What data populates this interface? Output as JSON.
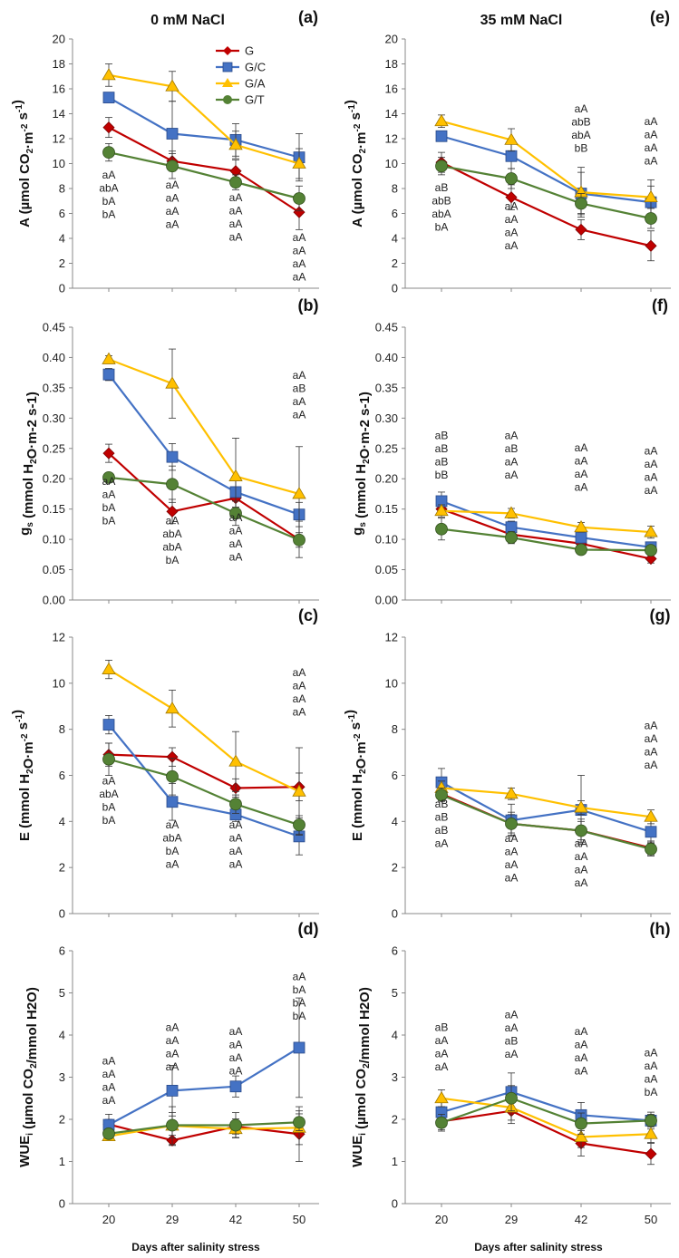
{
  "columns": [
    "0 mM NaCl",
    "35 mM NaCl"
  ],
  "x_label": "Days after salinity stress",
  "colors": {
    "G": "#c00000",
    "G/C": "#4472c4",
    "G/A": "#ffc000",
    "G/T": "#548235"
  },
  "legend": [
    "G",
    "G/C",
    "G/A",
    "G/T"
  ],
  "chart_data": [
    {
      "type": "line",
      "panel": "(a)",
      "column": 0,
      "row": 0,
      "ylabel_main": "A (µmol CO",
      "ylabel_sub1": "2",
      "ylabel_mid": "·m",
      "ylabel_sup1": "-2",
      "ylabel_mid2": " s",
      "ylabel_sup2": "-1",
      "ylabel_end": ")",
      "ylim": [
        0,
        20
      ],
      "yticks": [
        "0",
        "2",
        "4",
        "6",
        "8",
        "10",
        "12",
        "14",
        "16",
        "18",
        "20"
      ],
      "categories": [
        "20",
        "29",
        "42",
        "50"
      ],
      "series": [
        {
          "name": "G",
          "values": [
            12.9,
            10.2,
            9.4,
            6.1
          ],
          "err": [
            0.8,
            0.8,
            0.9,
            1.4
          ]
        },
        {
          "name": "G/C",
          "values": [
            15.3,
            12.4,
            11.9,
            10.5
          ],
          "err": [
            0.3,
            2.6,
            1.3,
            1.9
          ]
        },
        {
          "name": "G/A",
          "values": [
            17.1,
            16.2,
            11.5,
            10.0
          ],
          "err": [
            0.9,
            1.2,
            1.1,
            1.2
          ]
        },
        {
          "name": "G/T",
          "values": [
            10.9,
            9.8,
            8.5,
            7.2
          ],
          "err": [
            0.7,
            1.0,
            0.6,
            1.0
          ]
        }
      ],
      "annotations": [
        {
          "x": "20",
          "y_top": 8.8,
          "lines": [
            "aA",
            "abA",
            "bA",
            "bA"
          ]
        },
        {
          "x": "29",
          "y_top": 8.0,
          "lines": [
            "aA",
            "aA",
            "aA",
            "aA"
          ]
        },
        {
          "x": "42",
          "y_top": 7.0,
          "lines": [
            "aA",
            "aA",
            "aA",
            "aA"
          ]
        },
        {
          "x": "50",
          "y_top": 3.8,
          "lines": [
            "aA",
            "aA",
            "aA",
            "aA"
          ]
        }
      ]
    },
    {
      "type": "line",
      "panel": "(b)",
      "column": 0,
      "row": 1,
      "ylabel_main": "g",
      "ylabel_sub1": "s",
      "ylabel_mid": " (mmol H",
      "ylabel_sup1": "",
      "ylabel_mid2": "2",
      "ylabel_sup2": "",
      "ylabel_end": "O·m-2 s-1)",
      "ylim": [
        0,
        0.45
      ],
      "yticks": [
        "0.00",
        "0.05",
        "0.10",
        "0.15",
        "0.20",
        "0.25",
        "0.30",
        "0.35",
        "0.40",
        "0.45"
      ],
      "categories": [
        "20",
        "29",
        "42",
        "50"
      ],
      "series": [
        {
          "name": "G",
          "values": [
            0.242,
            0.146,
            0.168,
            0.1
          ],
          "err": [
            0.015,
            0.02,
            0.015,
            0.03
          ]
        },
        {
          "name": "G/C",
          "values": [
            0.372,
            0.236,
            0.178,
            0.141
          ],
          "err": [
            0.01,
            0.022,
            0.025,
            0.02
          ]
        },
        {
          "name": "G/A",
          "values": [
            0.397,
            0.357,
            0.204,
            0.175
          ],
          "err": [
            0.006,
            0.057,
            0.063,
            0.078
          ]
        },
        {
          "name": "G/T",
          "values": [
            0.202,
            0.191,
            0.143,
            0.099
          ],
          "err": [
            0.006,
            0.03,
            0.02,
            0.012
          ]
        }
      ],
      "annotations": [
        {
          "x": "20",
          "y_top": 0.19,
          "lines": [
            "aA",
            "aA",
            "bA",
            "bA"
          ]
        },
        {
          "x": "29",
          "y_top": 0.125,
          "lines": [
            "aA",
            "abA",
            "abA",
            "bA"
          ]
        },
        {
          "x": "42",
          "y_top": 0.13,
          "lines": [
            "aA",
            "aA",
            "aA",
            "aA"
          ]
        },
        {
          "x": "50",
          "y_top": 0.365,
          "lines": [
            "aA",
            "aB",
            "aA",
            "aA"
          ]
        }
      ]
    },
    {
      "type": "line",
      "panel": "(c)",
      "column": 0,
      "row": 2,
      "ylabel_main": "E (mmol H",
      "ylabel_sub1": "2",
      "ylabel_mid": "O·m",
      "ylabel_sup1": "-2",
      "ylabel_mid2": " s",
      "ylabel_sup2": "-1",
      "ylabel_end": ")",
      "ylim": [
        0,
        12
      ],
      "yticks": [
        "0",
        "2",
        "4",
        "6",
        "8",
        "10",
        "12"
      ],
      "categories": [
        "20",
        "29",
        "42",
        "50"
      ],
      "series": [
        {
          "name": "G",
          "values": [
            6.9,
            6.8,
            5.45,
            5.5
          ],
          "err": [
            0.5,
            0.4,
            0.4,
            0.6
          ]
        },
        {
          "name": "G/C",
          "values": [
            8.2,
            4.85,
            4.3,
            3.35
          ],
          "err": [
            0.4,
            0.8,
            0.3,
            0.8
          ]
        },
        {
          "name": "G/A",
          "values": [
            10.6,
            8.9,
            6.6,
            5.3
          ],
          "err": [
            0.4,
            0.8,
            1.3,
            1.9
          ]
        },
        {
          "name": "G/T",
          "values": [
            6.7,
            5.95,
            4.75,
            3.85
          ],
          "err": [
            0.7,
            0.8,
            0.4,
            0.4
          ]
        }
      ],
      "annotations": [
        {
          "x": "20",
          "y_top": 5.6,
          "lines": [
            "aA",
            "abA",
            "bA",
            "bA"
          ]
        },
        {
          "x": "29",
          "y_top": 3.7,
          "lines": [
            "aA",
            "abA",
            "bA",
            "aA"
          ]
        },
        {
          "x": "42",
          "y_top": 3.7,
          "lines": [
            "aA",
            "aA",
            "aA",
            "aA"
          ]
        },
        {
          "x": "50",
          "y_top": 10.3,
          "lines": [
            "aA",
            "aA",
            "aA",
            "aA"
          ]
        }
      ]
    },
    {
      "type": "line",
      "panel": "(d)",
      "column": 0,
      "row": 3,
      "ylabel_main": "WUE",
      "ylabel_sub1": "i",
      "ylabel_mid": " (µmol CO",
      "ylabel_sup1": "",
      "ylabel_mid2": "2",
      "ylabel_sup2": "",
      "ylabel_end": "/mmol H2O)",
      "ylim": [
        0,
        6
      ],
      "yticks": [
        "0",
        "1",
        "2",
        "3",
        "4",
        "5",
        "6"
      ],
      "categories": [
        "20",
        "29",
        "42",
        "50"
      ],
      "series": [
        {
          "name": "G",
          "values": [
            1.88,
            1.5,
            1.83,
            1.65
          ],
          "err": [
            0.12,
            0.12,
            0.18,
            0.65
          ]
        },
        {
          "name": "G/C",
          "values": [
            1.87,
            2.68,
            2.78,
            3.7
          ],
          "err": [
            0.25,
            0.6,
            0.25,
            1.18
          ]
        },
        {
          "name": "G/A",
          "values": [
            1.6,
            1.85,
            1.77,
            1.8
          ],
          "err": [
            0.1,
            0.45,
            0.2,
            0.4
          ]
        },
        {
          "name": "G/T",
          "values": [
            1.66,
            1.86,
            1.86,
            1.93
          ],
          "err": [
            0.1,
            0.3,
            0.3,
            0.2
          ]
        }
      ],
      "annotations": [
        {
          "x": "20",
          "y_top": 3.3,
          "lines": [
            "aA",
            "aA",
            "aA",
            "aA"
          ]
        },
        {
          "x": "29",
          "y_top": 4.1,
          "lines": [
            "aA",
            "aA",
            "aA",
            "aA"
          ]
        },
        {
          "x": "42",
          "y_top": 4.0,
          "lines": [
            "aA",
            "aA",
            "aA",
            "aA"
          ]
        },
        {
          "x": "50",
          "y_top": 5.3,
          "lines": [
            "aA",
            "bA",
            "bA",
            "bA"
          ]
        }
      ]
    },
    {
      "type": "line",
      "panel": "(e)",
      "column": 1,
      "row": 0,
      "ylabel_main": "A (µmol CO",
      "ylabel_sub1": "2",
      "ylabel_mid": "·m",
      "ylabel_sup1": "-2",
      "ylabel_mid2": " s",
      "ylabel_sup2": "-1",
      "ylabel_end": ")",
      "ylim": [
        0,
        20
      ],
      "yticks": [
        "0",
        "2",
        "4",
        "6",
        "8",
        "10",
        "12",
        "14",
        "16",
        "18",
        "20"
      ],
      "categories": [
        "20",
        "29",
        "42",
        "50"
      ],
      "series": [
        {
          "name": "G",
          "values": [
            10.1,
            7.3,
            4.7,
            3.4
          ],
          "err": [
            0.8,
            1.0,
            0.8,
            1.2
          ]
        },
        {
          "name": "G/C",
          "values": [
            12.2,
            10.6,
            7.6,
            6.9
          ],
          "err": [
            0.4,
            1.0,
            1.7,
            1.3
          ]
        },
        {
          "name": "G/A",
          "values": [
            13.4,
            11.9,
            7.7,
            7.3
          ],
          "err": [
            0.5,
            0.9,
            2.0,
            1.4
          ]
        },
        {
          "name": "G/T",
          "values": [
            9.8,
            8.8,
            6.8,
            5.6
          ],
          "err": [
            0.7,
            0.8,
            0.8,
            0.8
          ]
        }
      ],
      "annotations": [
        {
          "x": "20",
          "y_top": 7.8,
          "lines": [
            "aB",
            "abB",
            "abA",
            "bA"
          ]
        },
        {
          "x": "29",
          "y_top": 6.3,
          "lines": [
            "aA",
            "aA",
            "aA",
            "aA"
          ]
        },
        {
          "x": "42",
          "y_top": 14.1,
          "lines": [
            "aA",
            "abB",
            "abA",
            "bB"
          ]
        },
        {
          "x": "50",
          "y_top": 13.1,
          "lines": [
            "aA",
            "aA",
            "aA",
            "aA"
          ]
        }
      ]
    },
    {
      "type": "line",
      "panel": "(f)",
      "column": 1,
      "row": 1,
      "ylabel_main": "g",
      "ylabel_sub1": "s",
      "ylabel_mid": " (mmol H",
      "ylabel_sup1": "",
      "ylabel_mid2": "2",
      "ylabel_sup2": "",
      "ylabel_end": "O·m-2 s-1)",
      "ylim": [
        0,
        0.45
      ],
      "yticks": [
        "0.00",
        "0.05",
        "0.10",
        "0.15",
        "0.20",
        "0.25",
        "0.30",
        "0.35",
        "0.40",
        "0.45"
      ],
      "categories": [
        "20",
        "29",
        "42",
        "50"
      ],
      "series": [
        {
          "name": "G",
          "values": [
            0.15,
            0.108,
            0.093,
            0.068
          ],
          "err": [
            0.01,
            0.01,
            0.01,
            0.007
          ]
        },
        {
          "name": "G/C",
          "values": [
            0.163,
            0.12,
            0.103,
            0.087
          ],
          "err": [
            0.015,
            0.01,
            0.008,
            0.008
          ]
        },
        {
          "name": "G/A",
          "values": [
            0.147,
            0.143,
            0.12,
            0.112
          ],
          "err": [
            0.01,
            0.008,
            0.008,
            0.01
          ]
        },
        {
          "name": "G/T",
          "values": [
            0.117,
            0.103,
            0.083,
            0.082
          ],
          "err": [
            0.018,
            0.01,
            0.006,
            0.005
          ]
        }
      ],
      "annotations": [
        {
          "x": "20",
          "y_top": 0.265,
          "lines": [
            "aB",
            "aB",
            "aB",
            "bB"
          ]
        },
        {
          "x": "29",
          "y_top": 0.265,
          "lines": [
            "aA",
            "aB",
            "aA",
            "aA"
          ]
        },
        {
          "x": "42",
          "y_top": 0.245,
          "lines": [
            "aA",
            "aA",
            "aA",
            "aA"
          ]
        },
        {
          "x": "50",
          "y_top": 0.24,
          "lines": [
            "aA",
            "aA",
            "aA",
            "aA"
          ]
        }
      ]
    },
    {
      "type": "line",
      "panel": "(g)",
      "column": 1,
      "row": 2,
      "ylabel_main": "E (mmol H",
      "ylabel_sub1": "2",
      "ylabel_mid": "O·m",
      "ylabel_sup1": "-2",
      "ylabel_mid2": " s",
      "ylabel_sup2": "-1",
      "ylabel_end": ")",
      "ylim": [
        0,
        12
      ],
      "yticks": [
        "0",
        "2",
        "4",
        "6",
        "8",
        "10",
        "12"
      ],
      "categories": [
        "20",
        "29",
        "42",
        "50"
      ],
      "series": [
        {
          "name": "G",
          "values": [
            5.2,
            3.9,
            3.6,
            2.85
          ],
          "err": [
            0.3,
            0.4,
            0.4,
            0.3
          ]
        },
        {
          "name": "G/C",
          "values": [
            5.7,
            4.05,
            4.5,
            3.55
          ],
          "err": [
            0.6,
            0.7,
            1.5,
            0.5
          ]
        },
        {
          "name": "G/A",
          "values": [
            5.45,
            5.2,
            4.6,
            4.2
          ],
          "err": [
            0.3,
            0.25,
            0.3,
            0.3
          ]
        },
        {
          "name": "G/T",
          "values": [
            5.15,
            3.9,
            3.6,
            2.8
          ],
          "err": [
            0.3,
            0.5,
            0.5,
            0.3
          ]
        }
      ],
      "annotations": [
        {
          "x": "20",
          "y_top": 4.6,
          "lines": [
            "aB",
            "aB",
            "aB",
            "aA"
          ]
        },
        {
          "x": "29",
          "y_top": 3.1,
          "lines": [
            "aA",
            "aA",
            "aA",
            "aA"
          ]
        },
        {
          "x": "42",
          "y_top": 2.9,
          "lines": [
            "aA",
            "aA",
            "aA",
            "aA"
          ]
        },
        {
          "x": "50",
          "y_top": 8.0,
          "lines": [
            "aA",
            "aA",
            "aA",
            "aA"
          ]
        }
      ]
    },
    {
      "type": "line",
      "panel": "(h)",
      "column": 1,
      "row": 3,
      "ylabel_main": "WUE",
      "ylabel_sub1": "i",
      "ylabel_mid": " (µmol CO",
      "ylabel_sup1": "",
      "ylabel_mid2": "2",
      "ylabel_sup2": "",
      "ylabel_end": "/mmol H2O)",
      "ylim": [
        0,
        6
      ],
      "yticks": [
        "0",
        "1",
        "2",
        "3",
        "4",
        "5",
        "6"
      ],
      "categories": [
        "20",
        "29",
        "42",
        "50"
      ],
      "series": [
        {
          "name": "G",
          "values": [
            1.95,
            2.2,
            1.43,
            1.18
          ],
          "err": [
            0.2,
            0.3,
            0.3,
            0.25
          ]
        },
        {
          "name": "G/C",
          "values": [
            2.17,
            2.65,
            2.1,
            1.97
          ],
          "err": [
            0.3,
            0.45,
            0.3,
            0.2
          ]
        },
        {
          "name": "G/A",
          "values": [
            2.5,
            2.28,
            1.58,
            1.65
          ],
          "err": [
            0.2,
            0.3,
            0.25,
            0.2
          ]
        },
        {
          "name": "G/T",
          "values": [
            1.92,
            2.5,
            1.9,
            1.97
          ],
          "err": [
            0.2,
            0.3,
            0.25,
            0.15
          ]
        }
      ],
      "annotations": [
        {
          "x": "20",
          "y_top": 4.1,
          "lines": [
            "aB",
            "aA",
            "aA",
            "aA"
          ]
        },
        {
          "x": "29",
          "y_top": 4.4,
          "lines": [
            "aA",
            "aA",
            "aB",
            "aA"
          ]
        },
        {
          "x": "42",
          "y_top": 4.0,
          "lines": [
            "aA",
            "aA",
            "aA",
            "aA"
          ]
        },
        {
          "x": "50",
          "y_top": 3.5,
          "lines": [
            "aA",
            "aA",
            "aA",
            "bA"
          ]
        }
      ]
    }
  ]
}
